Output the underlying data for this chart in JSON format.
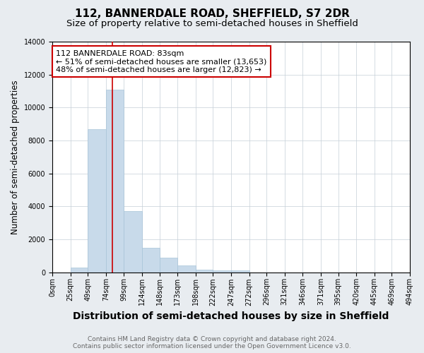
{
  "title": "112, BANNERDALE ROAD, SHEFFIELD, S7 2DR",
  "subtitle": "Size of property relative to semi-detached houses in Sheffield",
  "xlabel": "Distribution of semi-detached houses by size in Sheffield",
  "ylabel": "Number of semi-detached properties",
  "annotation_line1": "112 BANNERDALE ROAD: 83sqm",
  "annotation_line2": "← 51% of semi-detached houses are smaller (13,653)",
  "annotation_line3": "48% of semi-detached houses are larger (12,823) →",
  "footer_line1": "Contains HM Land Registry data © Crown copyright and database right 2024.",
  "footer_line2": "Contains public sector information licensed under the Open Government Licence v3.0.",
  "bar_edges": [
    0,
    25,
    49,
    74,
    99,
    124,
    148,
    173,
    198,
    222,
    247,
    272,
    296,
    321,
    346,
    371,
    395,
    420,
    445,
    469,
    494
  ],
  "bar_heights": [
    0,
    300,
    8700,
    11100,
    3700,
    1500,
    900,
    400,
    150,
    100,
    100,
    0,
    0,
    0,
    0,
    0,
    0,
    0,
    0,
    0
  ],
  "bar_color": "#c8daea",
  "bar_edge_color": "#a8c4d8",
  "property_x": 83,
  "property_line_color": "#cc0000",
  "annotation_box_color": "#cc0000",
  "ylim": [
    0,
    14000
  ],
  "xlim": [
    0,
    494
  ],
  "tick_labels": [
    "0sqm",
    "25sqm",
    "49sqm",
    "74sqm",
    "99sqm",
    "124sqm",
    "148sqm",
    "173sqm",
    "198sqm",
    "222sqm",
    "247sqm",
    "272sqm",
    "296sqm",
    "321sqm",
    "346sqm",
    "371sqm",
    "395sqm",
    "420sqm",
    "445sqm",
    "469sqm",
    "494sqm"
  ],
  "tick_positions": [
    0,
    25,
    49,
    74,
    99,
    124,
    148,
    173,
    198,
    222,
    247,
    272,
    296,
    321,
    346,
    371,
    395,
    420,
    445,
    469,
    494
  ],
  "figure_bg": "#e8ecf0",
  "plot_bg_color": "#ffffff",
  "title_fontsize": 11,
  "subtitle_fontsize": 9.5,
  "xlabel_fontsize": 10,
  "ylabel_fontsize": 8.5,
  "tick_fontsize": 7,
  "annotation_fontsize": 8,
  "footer_fontsize": 6.5
}
